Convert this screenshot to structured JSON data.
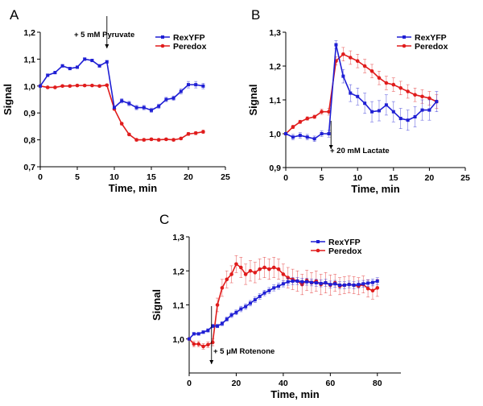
{
  "colors": {
    "RexYFP": "#1f1fd4",
    "Peredox": "#e01c1c"
  },
  "chart_data": [
    {
      "panel": "A",
      "type": "line",
      "xlabel": "Time, min",
      "ylabel": "Signal",
      "xlim": [
        0,
        25
      ],
      "ylim": [
        0.7,
        1.2
      ],
      "xticks": [
        0,
        5,
        10,
        15,
        20,
        25
      ],
      "yticks": [
        0.7,
        0.8,
        0.9,
        1.0,
        1.1,
        1.2
      ],
      "xticklabels": [
        "0",
        "5",
        "10",
        "15",
        "20",
        "25"
      ],
      "yticklabels": [
        "0,7",
        "0,8",
        "0,9",
        "1,0",
        "1,1",
        "1,2"
      ],
      "legend": "top-right",
      "annotation": {
        "text": "+ 5 mM Pyruvate",
        "x": 9
      },
      "series": [
        {
          "name": "RexYFP",
          "x": [
            0,
            1,
            2,
            3,
            4,
            5,
            6,
            7,
            8,
            9,
            10,
            11,
            12,
            13,
            14,
            15,
            16,
            17,
            18,
            19,
            20,
            21,
            22
          ],
          "y": [
            1.0,
            1.04,
            1.05,
            1.075,
            1.065,
            1.07,
            1.1,
            1.095,
            1.075,
            1.09,
            0.92,
            0.945,
            0.935,
            0.92,
            0.92,
            0.91,
            0.925,
            0.95,
            0.955,
            0.98,
            1.005,
            1.005,
            1.0
          ],
          "err": [
            0,
            0.005,
            0.005,
            0.005,
            0.005,
            0.005,
            0.005,
            0.005,
            0.005,
            0.005,
            0.005,
            0.008,
            0.008,
            0.008,
            0.008,
            0.008,
            0.008,
            0.008,
            0.008,
            0.01,
            0.012,
            0.012,
            0.01
          ]
        },
        {
          "name": "Peredox",
          "x": [
            0,
            1,
            2,
            3,
            4,
            5,
            6,
            7,
            8,
            9,
            10,
            11,
            12,
            13,
            14,
            15,
            16,
            17,
            18,
            19,
            20,
            21,
            22
          ],
          "y": [
            1.0,
            0.995,
            0.995,
            1.0,
            1.0,
            1.002,
            1.002,
            1.002,
            1.0,
            1.003,
            0.915,
            0.86,
            0.82,
            0.8,
            0.8,
            0.802,
            0.8,
            0.802,
            0.8,
            0.805,
            0.822,
            0.825,
            0.83
          ],
          "err": [
            0,
            0.004,
            0.004,
            0.004,
            0.004,
            0.004,
            0.004,
            0.004,
            0.004,
            0.004,
            0.005,
            0.005,
            0.005,
            0.005,
            0.005,
            0.005,
            0.005,
            0.005,
            0.005,
            0.005,
            0.006,
            0.006,
            0.006
          ]
        }
      ]
    },
    {
      "panel": "B",
      "type": "line",
      "xlabel": "Time, min",
      "ylabel": "Signal",
      "xlim": [
        0,
        25
      ],
      "ylim": [
        0.9,
        1.3
      ],
      "xticks": [
        0,
        5,
        10,
        15,
        20,
        25
      ],
      "yticks": [
        0.9,
        1.0,
        1.1,
        1.2,
        1.3
      ],
      "xticklabels": [
        "0",
        "5",
        "10",
        "15",
        "20",
        "25"
      ],
      "yticklabels": [
        "0,9",
        "1,0",
        "1,1",
        "1,2",
        "1,3"
      ],
      "legend": "top-right",
      "annotation": {
        "text": "+ 20 mM Lactate",
        "x": 6.3
      },
      "series": [
        {
          "name": "RexYFP",
          "x": [
            0,
            1,
            2,
            3,
            4,
            5,
            6,
            7,
            8,
            9,
            10,
            11,
            12,
            13,
            14,
            15,
            16,
            17,
            18,
            19,
            20,
            21
          ],
          "y": [
            1.0,
            0.99,
            0.995,
            0.99,
            0.985,
            1.0,
            1.0,
            1.263,
            1.17,
            1.12,
            1.11,
            1.09,
            1.065,
            1.068,
            1.085,
            1.065,
            1.045,
            1.04,
            1.05,
            1.07,
            1.07,
            1.095
          ],
          "err": [
            0,
            0.008,
            0.008,
            0.008,
            0.008,
            0.008,
            0.01,
            0.012,
            0.02,
            0.025,
            0.025,
            0.03,
            0.03,
            0.03,
            0.03,
            0.03,
            0.03,
            0.03,
            0.03,
            0.03,
            0.03,
            0.03
          ]
        },
        {
          "name": "Peredox",
          "x": [
            0,
            1,
            2,
            3,
            4,
            5,
            6,
            7,
            8,
            9,
            10,
            11,
            12,
            13,
            14,
            15,
            16,
            17,
            18,
            19,
            20,
            21
          ],
          "y": [
            1.0,
            1.02,
            1.035,
            1.045,
            1.05,
            1.065,
            1.065,
            1.215,
            1.235,
            1.225,
            1.215,
            1.2,
            1.185,
            1.165,
            1.15,
            1.145,
            1.135,
            1.125,
            1.115,
            1.11,
            1.105,
            1.095
          ],
          "err": [
            0,
            0.005,
            0.005,
            0.005,
            0.005,
            0.008,
            0.01,
            0.012,
            0.02,
            0.02,
            0.02,
            0.02,
            0.02,
            0.02,
            0.02,
            0.02,
            0.02,
            0.02,
            0.02,
            0.02,
            0.02,
            0.02
          ]
        }
      ]
    },
    {
      "panel": "C",
      "type": "line",
      "xlabel": "Time, min",
      "ylabel": "Signal",
      "xlim": [
        0,
        90
      ],
      "ylim": [
        0.9,
        1.3
      ],
      "xticks": [
        0,
        20,
        40,
        60,
        80
      ],
      "yticks": [
        1.0,
        1.1,
        1.2,
        1.3
      ],
      "xticklabels": [
        "0",
        "20",
        "40",
        "60",
        "80"
      ],
      "yticklabels": [
        "1,0",
        "1,1",
        "1,2",
        "1,3"
      ],
      "legend": "top-right",
      "annotation": {
        "text": "+ 5 μM Rotenone",
        "x": 9.5
      },
      "series": [
        {
          "name": "RexYFP",
          "x": [
            0,
            2,
            4,
            6,
            8,
            10,
            12,
            14,
            16,
            18,
            20,
            22,
            24,
            26,
            28,
            30,
            32,
            34,
            36,
            38,
            40,
            42,
            44,
            46,
            48,
            50,
            52,
            54,
            56,
            58,
            60,
            62,
            64,
            66,
            68,
            70,
            72,
            74,
            76,
            78,
            80
          ],
          "y": [
            1.0,
            1.015,
            1.015,
            1.02,
            1.025,
            1.038,
            1.038,
            1.045,
            1.058,
            1.07,
            1.078,
            1.088,
            1.095,
            1.105,
            1.115,
            1.125,
            1.135,
            1.142,
            1.15,
            1.155,
            1.162,
            1.168,
            1.17,
            1.17,
            1.168,
            1.168,
            1.166,
            1.165,
            1.163,
            1.165,
            1.16,
            1.162,
            1.158,
            1.158,
            1.16,
            1.158,
            1.16,
            1.162,
            1.164,
            1.166,
            1.17
          ],
          "err": [
            0,
            0.004,
            0.004,
            0.004,
            0.005,
            0.005,
            0.005,
            0.006,
            0.006,
            0.007,
            0.007,
            0.008,
            0.008,
            0.008,
            0.008,
            0.008,
            0.008,
            0.009,
            0.009,
            0.009,
            0.009,
            0.01,
            0.01,
            0.01,
            0.01,
            0.01,
            0.01,
            0.01,
            0.01,
            0.01,
            0.01,
            0.01,
            0.01,
            0.01,
            0.01,
            0.01,
            0.01,
            0.01,
            0.01,
            0.01,
            0.01
          ]
        },
        {
          "name": "Peredox",
          "x": [
            0,
            2,
            4,
            6,
            8,
            10,
            12,
            14,
            16,
            18,
            20,
            22,
            24,
            26,
            28,
            30,
            32,
            34,
            36,
            38,
            40,
            42,
            44,
            46,
            48,
            50,
            52,
            54,
            56,
            58,
            60,
            62,
            64,
            66,
            68,
            70,
            72,
            74,
            76,
            78,
            80
          ],
          "y": [
            1.0,
            0.985,
            0.985,
            0.978,
            0.983,
            0.99,
            1.1,
            1.15,
            1.175,
            1.19,
            1.22,
            1.21,
            1.19,
            1.2,
            1.195,
            1.205,
            1.21,
            1.205,
            1.21,
            1.205,
            1.19,
            1.18,
            1.175,
            1.17,
            1.16,
            1.172,
            1.165,
            1.17,
            1.16,
            1.165,
            1.158,
            1.165,
            1.155,
            1.158,
            1.16,
            1.158,
            1.155,
            1.16,
            1.148,
            1.142,
            1.15
          ],
          "err": [
            0,
            0.008,
            0.008,
            0.008,
            0.008,
            0.01,
            0.02,
            0.025,
            0.025,
            0.025,
            0.025,
            0.03,
            0.03,
            0.03,
            0.03,
            0.03,
            0.03,
            0.03,
            0.03,
            0.03,
            0.03,
            0.03,
            0.03,
            0.03,
            0.03,
            0.03,
            0.03,
            0.03,
            0.03,
            0.03,
            0.03,
            0.025,
            0.025,
            0.025,
            0.025,
            0.025,
            0.025,
            0.025,
            0.025,
            0.025,
            0.025
          ]
        }
      ]
    }
  ]
}
